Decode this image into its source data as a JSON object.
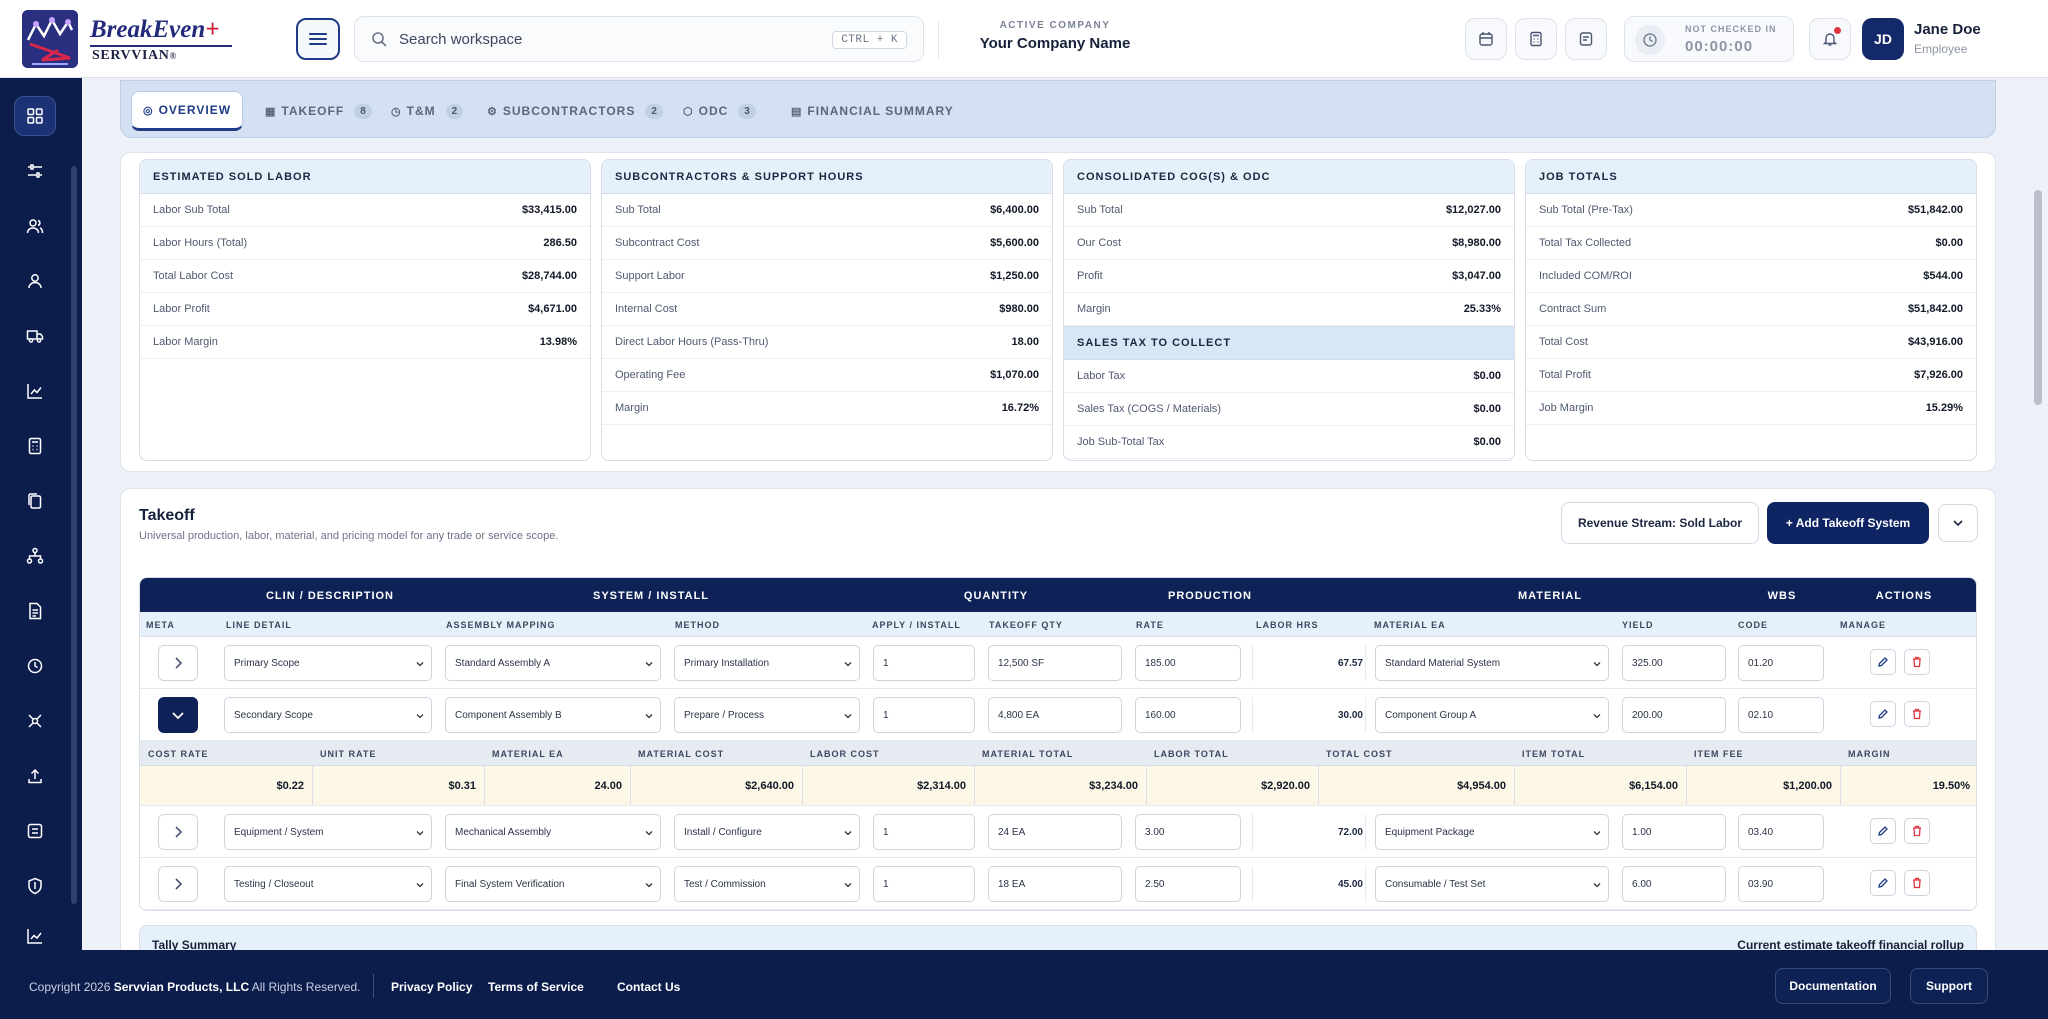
{
  "brand": {
    "name": "BreakEven",
    "plus": "+",
    "sub": "SERVVIAN",
    "reg": "®"
  },
  "search": {
    "placeholder": "Search workspace",
    "shortcut": "CTRL + K"
  },
  "company": {
    "label": "ACTIVE COMPANY",
    "name": "Your Company Name"
  },
  "checkin": {
    "label": "NOT CHECKED IN",
    "time": "00:00:00"
  },
  "user": {
    "initials": "JD",
    "name": "Jane Doe",
    "role": "Employee"
  },
  "tabs": [
    {
      "label": "OVERVIEW"
    },
    {
      "label": "TAKEOFF",
      "count": "8"
    },
    {
      "label": "T&M",
      "count": "2"
    },
    {
      "label": "SUBCONTRACTORS",
      "count": "2"
    },
    {
      "label": "ODC",
      "count": "3"
    },
    {
      "label": "FINANCIAL SUMMARY"
    }
  ],
  "cards": {
    "labor": {
      "title": "ESTIMATED SOLD LABOR",
      "rows": [
        {
          "k": "Labor Sub Total",
          "v": "$33,415.00"
        },
        {
          "k": "Labor Hours (Total)",
          "v": "286.50"
        },
        {
          "k": "Total Labor Cost",
          "v": "$28,744.00"
        },
        {
          "k": "Labor Profit",
          "v": "$4,671.00"
        },
        {
          "k": "Labor Margin",
          "v": "13.98%"
        }
      ]
    },
    "subs": {
      "title": "SUBCONTRACTORS & SUPPORT HOURS",
      "rows": [
        {
          "k": "Sub Total",
          "v": "$6,400.00"
        },
        {
          "k": "Subcontract Cost",
          "v": "$5,600.00"
        },
        {
          "k": "Support Labor",
          "v": "$1,250.00"
        },
        {
          "k": "Internal Cost",
          "v": "$980.00"
        },
        {
          "k": "Direct Labor Hours (Pass-Thru)",
          "v": "18.00"
        },
        {
          "k": "Operating Fee",
          "v": "$1,070.00"
        },
        {
          "k": "Margin",
          "v": "16.72%"
        }
      ]
    },
    "cogs": {
      "title": "CONSOLIDATED COG(S) & ODC",
      "rows": [
        {
          "k": "Sub Total",
          "v": "$12,027.00"
        },
        {
          "k": "Our Cost",
          "v": "$8,980.00"
        },
        {
          "k": "Profit",
          "v": "$3,047.00"
        },
        {
          "k": "Margin",
          "v": "25.33%"
        }
      ],
      "tax_title": "SALES TAX TO COLLECT",
      "tax_rows": [
        {
          "k": "Labor Tax",
          "v": "$0.00"
        },
        {
          "k": "Sales Tax (COGS / Materials)",
          "v": "$0.00"
        },
        {
          "k": "Job Sub-Total Tax",
          "v": "$0.00"
        }
      ]
    },
    "job": {
      "title": "JOB TOTALS",
      "rows": [
        {
          "k": "Sub Total (Pre-Tax)",
          "v": "$51,842.00"
        },
        {
          "k": "Total Tax Collected",
          "v": "$0.00"
        },
        {
          "k": "Included COM/ROI",
          "v": "$544.00"
        },
        {
          "k": "Contract Sum",
          "v": "$51,842.00"
        },
        {
          "k": "Total Cost",
          "v": "$43,916.00"
        },
        {
          "k": "Total Profit",
          "v": "$7,926.00"
        },
        {
          "k": "Job Margin",
          "v": "15.29%"
        }
      ]
    }
  },
  "takeoff": {
    "title": "Takeoff",
    "subtitle": "Universal production, labor, material, and pricing model for any trade or service scope.",
    "revenue_btn": "Revenue Stream: Sold Labor",
    "add_btn": "+ Add Takeoff System",
    "group_headers": [
      "CLIN / DESCRIPTION",
      "SYSTEM / INSTALL",
      "QUANTITY",
      "PRODUCTION",
      "MATERIAL",
      "WBS",
      "ACTIONS"
    ],
    "col_headers": [
      "META",
      "LINE DETAIL",
      "ASSEMBLY MAPPING",
      "METHOD",
      "APPLY / INSTALL",
      "TAKEOFF QTY",
      "RATE",
      "LABOR HRS",
      "MATERIAL EA",
      "YIELD",
      "CODE",
      "MANAGE"
    ],
    "rows": [
      {
        "line": "Primary Scope",
        "assembly": "Standard Assembly A",
        "method": "Primary Installation",
        "apply": "1",
        "qty": "12,500 SF",
        "rate": "185.00",
        "hrs": "67.57",
        "material": "Standard Material System",
        "yield": "325.00",
        "code": "01.20"
      },
      {
        "line": "Secondary Scope",
        "assembly": "Component Assembly B",
        "method": "Prepare / Process",
        "apply": "1",
        "qty": "4,800 EA",
        "rate": "160.00",
        "hrs": "30.00",
        "material": "Component Group A",
        "yield": "200.00",
        "code": "02.10"
      },
      {
        "line": "Equipment / System",
        "assembly": "Mechanical Assembly",
        "method": "Install / Configure",
        "apply": "1",
        "qty": "24 EA",
        "rate": "3.00",
        "hrs": "72.00",
        "material": "Equipment Package",
        "yield": "1.00",
        "code": "03.40"
      },
      {
        "line": "Testing / Closeout",
        "assembly": "Final System Verification",
        "method": "Test / Commission",
        "apply": "1",
        "qty": "18 EA",
        "rate": "2.50",
        "hrs": "45.00",
        "material": "Consumable / Test Set",
        "yield": "6.00",
        "code": "03.90"
      }
    ],
    "detail_headers": [
      "COST RATE",
      "UNIT RATE",
      "MATERIAL EA",
      "MATERIAL COST",
      "LABOR COST",
      "MATERIAL TOTAL",
      "LABOR TOTAL",
      "TOTAL COST",
      "ITEM TOTAL",
      "ITEM FEE",
      "MARGIN"
    ],
    "detail_values": [
      "$0.22",
      "$0.31",
      "24.00",
      "$2,640.00",
      "$2,314.00",
      "$3,234.00",
      "$2,920.00",
      "$4,954.00",
      "$6,154.00",
      "$1,200.00",
      "19.50%"
    ],
    "tally_title": "Tally Summary",
    "tally_note": "Current estimate takeoff financial rollup"
  },
  "footer": {
    "copy_pre": "Copyright 2026",
    "copy_org": "Servvian Products, LLC",
    "copy_post": "All Rights Reserved.",
    "links": [
      "Privacy Policy",
      "Terms of Service",
      "Contact Us"
    ],
    "documentation": "Documentation",
    "support": "Support"
  },
  "colors": {
    "navy": "#0c1d4c",
    "accent": "#1f3b86",
    "danger": "#e0343f",
    "highlight": "#fcf7e6"
  },
  "icons": [
    "menu-icon",
    "search-icon",
    "calendar-icon",
    "calculator-icon",
    "document-icon",
    "clock-icon",
    "bell-icon",
    "dashboard-icon",
    "sliders-icon",
    "users-icon",
    "user-icon",
    "truck-icon",
    "chart-line-icon",
    "calculator-icon",
    "file-copy-icon",
    "sitemap-icon",
    "invoice-icon",
    "history-icon",
    "integrations-icon",
    "upload-icon",
    "checklist-icon",
    "shield-icon",
    "analytics-icon",
    "edit-icon",
    "trash-icon",
    "chevron-down-icon",
    "chevron-right-icon"
  ]
}
